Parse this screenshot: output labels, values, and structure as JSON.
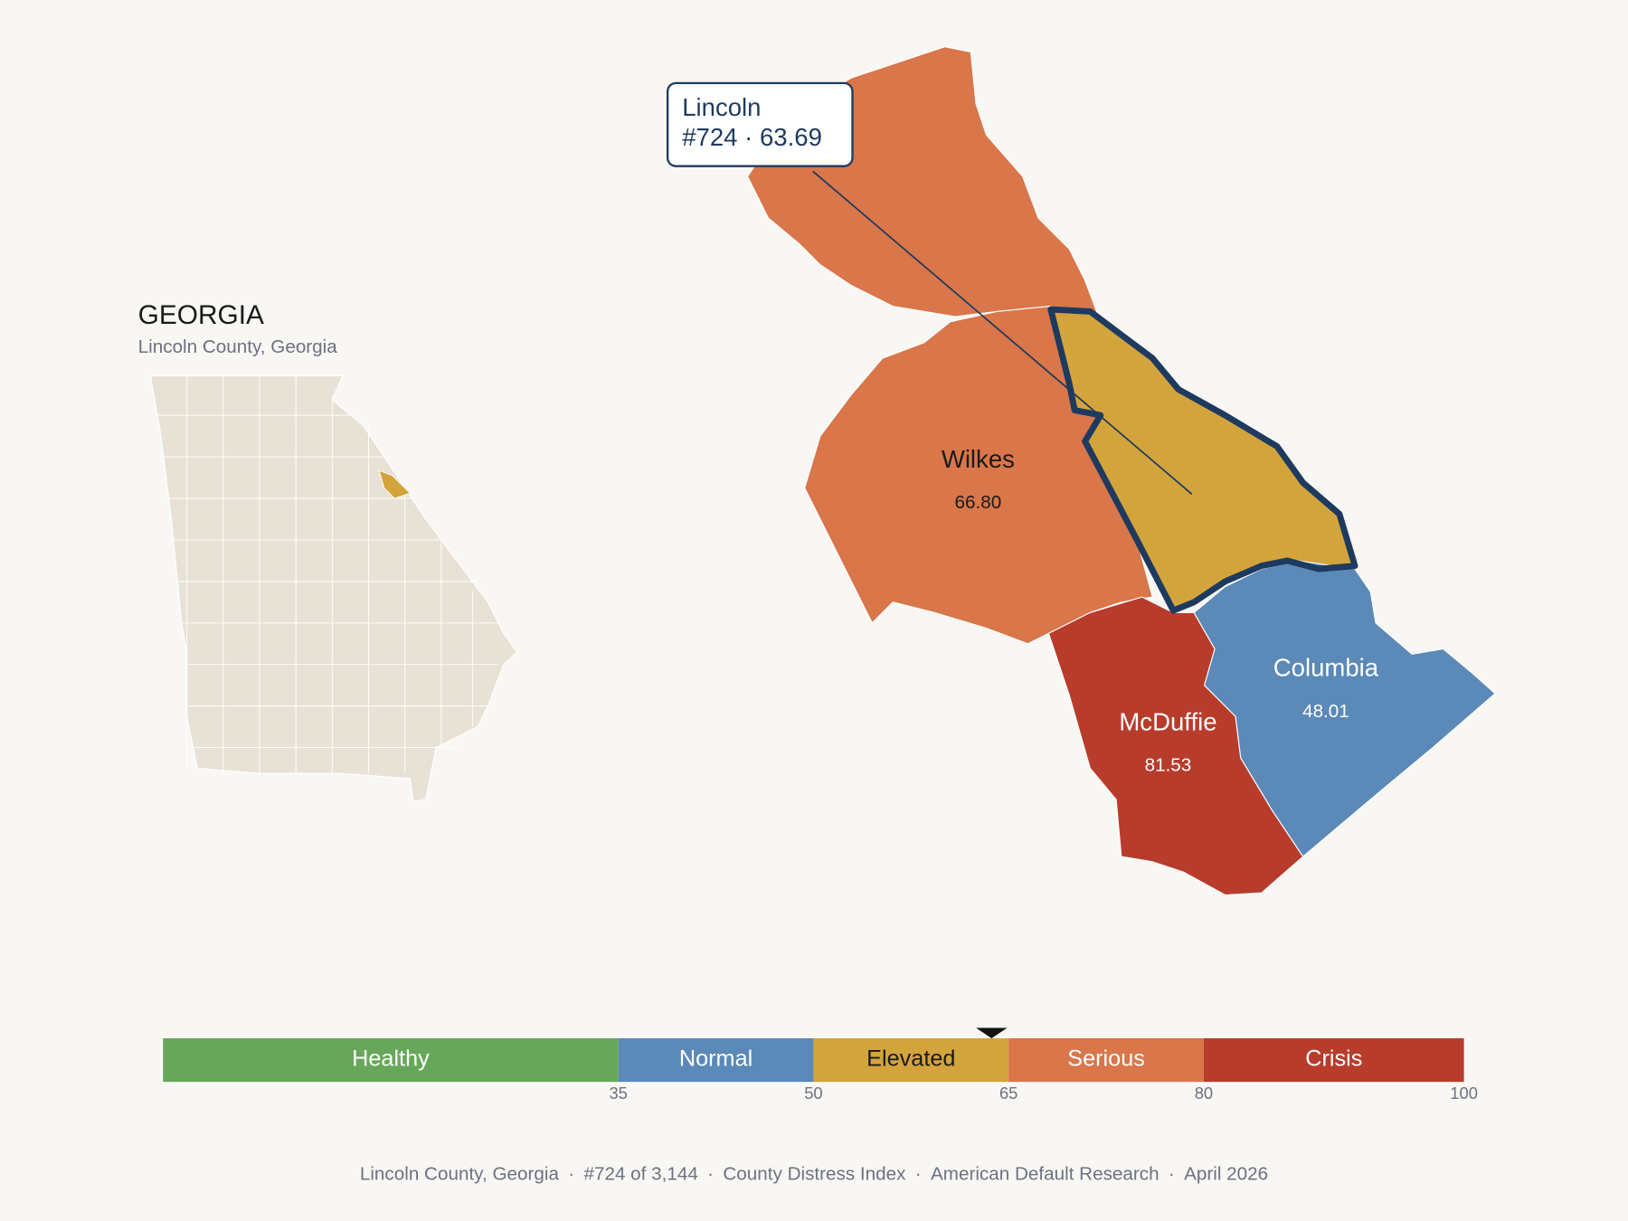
{
  "header": {
    "title": "GEORGIA",
    "subtitle": "Lincoln County, Georgia"
  },
  "tooltip": {
    "name": "Lincoln",
    "detail": "#724 · 63.69"
  },
  "counties": [
    {
      "name": "Lincoln",
      "value": 63.69
    },
    {
      "name": "Wilkes",
      "value": 66.8,
      "value_label": "66.80"
    },
    {
      "name": "McDuffie",
      "value": 81.53,
      "value_label": "81.53"
    },
    {
      "name": "Columbia",
      "value": 48.01,
      "value_label": "48.01"
    }
  ],
  "legend": {
    "range": [
      0,
      100
    ],
    "ticks": [
      35,
      50,
      65,
      80,
      100
    ],
    "bands": [
      {
        "name": "Healthy",
        "color": "#67a75a"
      },
      {
        "name": "Normal",
        "color": "#5b89b8"
      },
      {
        "name": "Elevated",
        "color": "#d4a43c"
      },
      {
        "name": "Serious",
        "color": "#d9764a"
      },
      {
        "name": "Crisis",
        "color": "#b83c2c"
      }
    ]
  },
  "footer": {
    "separator": "·",
    "parts": [
      "Lincoln County, Georgia",
      "#724 of 3,144",
      "County Distress Index",
      "American Default Research",
      "April 2026"
    ]
  }
}
